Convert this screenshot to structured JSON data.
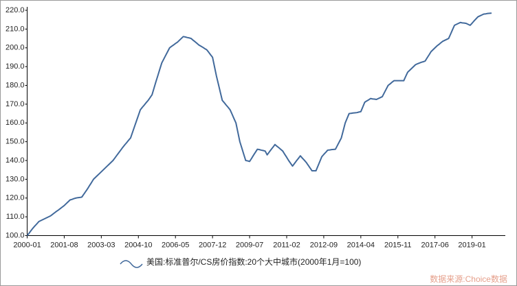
{
  "chart_data": {
    "type": "line",
    "categories": [
      "2000-01",
      null,
      null,
      null,
      null,
      null,
      null,
      null,
      null,
      null,
      null,
      null,
      null,
      null,
      null,
      null,
      null,
      null,
      null,
      "2001-08",
      null,
      null,
      null,
      null,
      null,
      null,
      null,
      null,
      null,
      null,
      null,
      null,
      null,
      null,
      null,
      null,
      null,
      null,
      "2003-03",
      null,
      null,
      null,
      null,
      null,
      null,
      null,
      null,
      null,
      null,
      null,
      null,
      null,
      null,
      null,
      null,
      null,
      null,
      "2004-10",
      null,
      null,
      null,
      null,
      null,
      null,
      null,
      null,
      null,
      null,
      null,
      null,
      null,
      null,
      null,
      null,
      null,
      null,
      "2006-05",
      null,
      null,
      null,
      null,
      null,
      null,
      null,
      null,
      null,
      null,
      null,
      null,
      null,
      null,
      null,
      null,
      null,
      null,
      "2007-12",
      null,
      null,
      null,
      null,
      null,
      null,
      null,
      null,
      null,
      null,
      null,
      null,
      null,
      null,
      null,
      null,
      null,
      null,
      "2009-07",
      null,
      null,
      null,
      null,
      null,
      null,
      null,
      null,
      null,
      null,
      null,
      null,
      null,
      null,
      null,
      null,
      null,
      null,
      "2011-02",
      null,
      null,
      null,
      null,
      null,
      null,
      null,
      null,
      null,
      null,
      null,
      null,
      null,
      null,
      null,
      null,
      null,
      null,
      "2012-09",
      null,
      null,
      null,
      null,
      null,
      null,
      null,
      null,
      null,
      null,
      null,
      null,
      null,
      null,
      null,
      null,
      null,
      null,
      "2014-04",
      null,
      null,
      null,
      null,
      null,
      null,
      null,
      null,
      null,
      null,
      null,
      null,
      null,
      null,
      null,
      null,
      null,
      null,
      "2015-11",
      null,
      null,
      null,
      null,
      null,
      null,
      null,
      null,
      null,
      null,
      null,
      null,
      null,
      null,
      null,
      null,
      null,
      null,
      "2017-06",
      null,
      null,
      null,
      null,
      null,
      null,
      null,
      null,
      null,
      null,
      null,
      null,
      null,
      null,
      null,
      null,
      null,
      null,
      "2019-01",
      null,
      null,
      null,
      null,
      null,
      null,
      null,
      null,
      null,
      null
    ],
    "series": [
      {
        "name": "美国:标准普尔/CS房价指数:20个大中城市(2000年1月=100)",
        "color": "#41699b",
        "values": [
          100,
          101.3,
          102.7,
          104,
          105.2,
          106.3,
          107.5,
          108,
          108.5,
          109,
          109.5,
          110,
          110.5,
          111.3,
          112.1,
          112.9,
          113.6,
          114.4,
          115.2,
          116,
          117,
          118,
          119,
          119.3,
          119.7,
          120,
          120.2,
          120.3,
          120.5,
          122,
          123.5,
          125,
          126.7,
          128.3,
          130,
          131,
          132,
          133,
          134,
          135,
          136,
          137,
          138,
          139,
          140,
          141.4,
          142.8,
          144.2,
          145.6,
          147,
          148.3,
          149.5,
          150.8,
          152,
          155,
          158,
          161,
          164,
          167,
          168.3,
          169.5,
          170.8,
          172,
          173.5,
          175,
          178.5,
          182,
          185.3,
          188.7,
          192,
          194,
          196,
          198,
          200,
          200.8,
          201.5,
          202.3,
          203,
          204,
          205,
          206,
          205.8,
          205.5,
          205.3,
          205,
          204.1,
          203.3,
          202.4,
          201.5,
          200.9,
          200.3,
          199.6,
          199,
          197.7,
          196.3,
          195,
          190,
          185,
          180.7,
          176.3,
          172,
          170.8,
          169.5,
          168.3,
          167,
          164.7,
          162.3,
          160,
          155,
          150,
          146.7,
          143.3,
          140,
          139.8,
          139.5,
          141.1,
          142.8,
          144.4,
          146,
          145.8,
          145.5,
          145.3,
          145,
          143,
          144.4,
          145.8,
          147.1,
          148.5,
          147.6,
          146.8,
          145.9,
          145,
          143.3,
          141.7,
          140,
          138.5,
          137,
          138.4,
          139.8,
          141.1,
          142.5,
          141.3,
          140.2,
          139,
          137.5,
          136,
          134.5,
          134.5,
          134.5,
          137,
          139.5,
          142,
          143.2,
          144.3,
          145.5,
          145.6,
          145.8,
          145.9,
          146,
          148,
          150,
          152,
          156,
          160,
          162.5,
          165,
          165.1,
          165.3,
          165.4,
          165.5,
          165.8,
          166,
          168.5,
          171,
          171.7,
          172.3,
          173,
          172.8,
          172.7,
          172.5,
          173,
          173.5,
          174,
          176,
          178,
          180,
          180.8,
          181.7,
          182.5,
          182.5,
          182.5,
          182.5,
          182.5,
          182.5,
          184.8,
          187,
          188,
          189,
          190,
          191,
          191.5,
          191.9,
          192.3,
          192.6,
          193,
          194.7,
          196.3,
          198,
          199,
          200,
          201,
          201.8,
          202.7,
          203.5,
          204,
          204.5,
          205,
          207.3,
          209.7,
          212,
          212.5,
          213,
          213.5,
          213.3,
          213.2,
          213,
          212.5,
          212,
          213.1,
          214.3,
          215.4,
          216.5,
          217,
          217.5,
          218,
          218.1,
          218.3,
          218.4,
          218.5
        ]
      }
    ],
    "ylim": [
      100,
      220
    ],
    "yticks": [
      {
        "value": 100,
        "label": "100.0"
      },
      {
        "value": 110,
        "label": "110.0"
      },
      {
        "value": 120,
        "label": "120.0"
      },
      {
        "value": 130,
        "label": "130.0"
      },
      {
        "value": 140,
        "label": "140.0"
      },
      {
        "value": 150,
        "label": "150.0"
      },
      {
        "value": 160,
        "label": "160.0"
      },
      {
        "value": 170,
        "label": "170.0"
      },
      {
        "value": 180,
        "label": "180.0"
      },
      {
        "value": 190,
        "label": "190.0"
      },
      {
        "value": 200,
        "label": "200.0"
      },
      {
        "value": 210,
        "label": "210.0"
      },
      {
        "value": 220,
        "label": "220.0"
      }
    ],
    "grid": false,
    "source": "数据来源:Choice数据"
  }
}
